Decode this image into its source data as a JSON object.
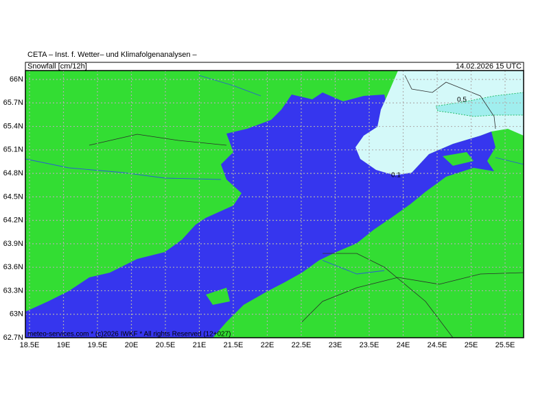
{
  "header": {
    "title": "CETA – Inst. f. Wetter– und Klimafolgenanalysen –",
    "parameter": "Snowfall [cm/12h]",
    "valid_time": "14.02.2026 15 UTC"
  },
  "latitude_labels": [
    "66N",
    "65.7N",
    "65.4N",
    "65.1N",
    "64.8N",
    "64.5N",
    "64.2N",
    "63.9N",
    "63.6N",
    "63.3N",
    "63N",
    "62.7N"
  ],
  "longitude_labels": [
    "18.5E",
    "19E",
    "19.5E",
    "20E",
    "20.5E",
    "21E",
    "21.5E",
    "22E",
    "22.5E",
    "23E",
    "23.5E",
    "24E",
    "24.5E",
    "25E",
    "25.5E"
  ],
  "contour_labels": [
    "0.5",
    "0.1"
  ],
  "footer": "meteo-services.com * (c)2026 IWKF * All rights Reserved (12+027)"
}
